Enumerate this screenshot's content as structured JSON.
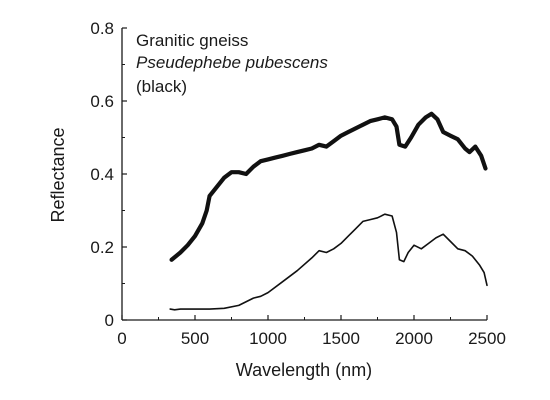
{
  "chart_data": {
    "type": "line",
    "xlabel": "Wavelength (nm)",
    "ylabel": "Reflectance",
    "xlim": [
      0,
      2500
    ],
    "ylim": [
      0,
      0.8
    ],
    "x_ticks": [
      0,
      500,
      1000,
      1500,
      2000,
      2500
    ],
    "y_ticks": [
      0,
      0.2,
      0.4,
      0.6,
      0.8
    ],
    "x_tick_labels": [
      "0",
      "500",
      "1000",
      "1500",
      "2000",
      "2500"
    ],
    "y_tick_labels": [
      "0",
      "0.2",
      "0.4",
      "0.6",
      "0.8"
    ],
    "grid": false,
    "annotations": {
      "line1": "Granitic gneiss",
      "line2": "Pseudephebe pubescens",
      "line3": "(black)"
    },
    "series": [
      {
        "color": "#111111",
        "points": [
          [
            340,
            0.165
          ],
          [
            400,
            0.185
          ],
          [
            450,
            0.205
          ],
          [
            500,
            0.23
          ],
          [
            550,
            0.265
          ],
          [
            580,
            0.3
          ],
          [
            600,
            0.34
          ],
          [
            650,
            0.365
          ],
          [
            700,
            0.39
          ],
          [
            750,
            0.405
          ],
          [
            800,
            0.405
          ],
          [
            850,
            0.4
          ],
          [
            900,
            0.42
          ],
          [
            950,
            0.435
          ],
          [
            1000,
            0.44
          ],
          [
            1050,
            0.445
          ],
          [
            1100,
            0.45
          ],
          [
            1150,
            0.455
          ],
          [
            1200,
            0.46
          ],
          [
            1250,
            0.465
          ],
          [
            1300,
            0.47
          ],
          [
            1350,
            0.48
          ],
          [
            1400,
            0.475
          ],
          [
            1450,
            0.49
          ],
          [
            1500,
            0.505
          ],
          [
            1550,
            0.515
          ],
          [
            1600,
            0.525
          ],
          [
            1650,
            0.535
          ],
          [
            1700,
            0.545
          ],
          [
            1750,
            0.55
          ],
          [
            1800,
            0.555
          ],
          [
            1850,
            0.55
          ],
          [
            1880,
            0.53
          ],
          [
            1900,
            0.48
          ],
          [
            1940,
            0.475
          ],
          [
            1980,
            0.5
          ],
          [
            2030,
            0.535
          ],
          [
            2080,
            0.555
          ],
          [
            2120,
            0.565
          ],
          [
            2160,
            0.55
          ],
          [
            2200,
            0.515
          ],
          [
            2250,
            0.505
          ],
          [
            2300,
            0.495
          ],
          [
            2350,
            0.47
          ],
          [
            2380,
            0.46
          ],
          [
            2420,
            0.475
          ],
          [
            2460,
            0.45
          ],
          [
            2490,
            0.415
          ]
        ]
      },
      {
        "color": "#111111",
        "points": [
          [
            330,
            0.03
          ],
          [
            360,
            0.028
          ],
          [
            400,
            0.03
          ],
          [
            500,
            0.03
          ],
          [
            600,
            0.03
          ],
          [
            700,
            0.032
          ],
          [
            800,
            0.04
          ],
          [
            900,
            0.06
          ],
          [
            950,
            0.065
          ],
          [
            1000,
            0.075
          ],
          [
            1100,
            0.105
          ],
          [
            1200,
            0.135
          ],
          [
            1300,
            0.17
          ],
          [
            1350,
            0.19
          ],
          [
            1400,
            0.185
          ],
          [
            1450,
            0.195
          ],
          [
            1500,
            0.21
          ],
          [
            1550,
            0.23
          ],
          [
            1600,
            0.25
          ],
          [
            1650,
            0.27
          ],
          [
            1700,
            0.275
          ],
          [
            1750,
            0.28
          ],
          [
            1800,
            0.29
          ],
          [
            1850,
            0.285
          ],
          [
            1880,
            0.24
          ],
          [
            1900,
            0.165
          ],
          [
            1930,
            0.16
          ],
          [
            1960,
            0.185
          ],
          [
            2000,
            0.205
          ],
          [
            2050,
            0.195
          ],
          [
            2100,
            0.21
          ],
          [
            2150,
            0.225
          ],
          [
            2200,
            0.235
          ],
          [
            2250,
            0.215
          ],
          [
            2300,
            0.195
          ],
          [
            2350,
            0.19
          ],
          [
            2400,
            0.175
          ],
          [
            2450,
            0.15
          ],
          [
            2480,
            0.13
          ],
          [
            2500,
            0.095
          ]
        ]
      }
    ]
  }
}
